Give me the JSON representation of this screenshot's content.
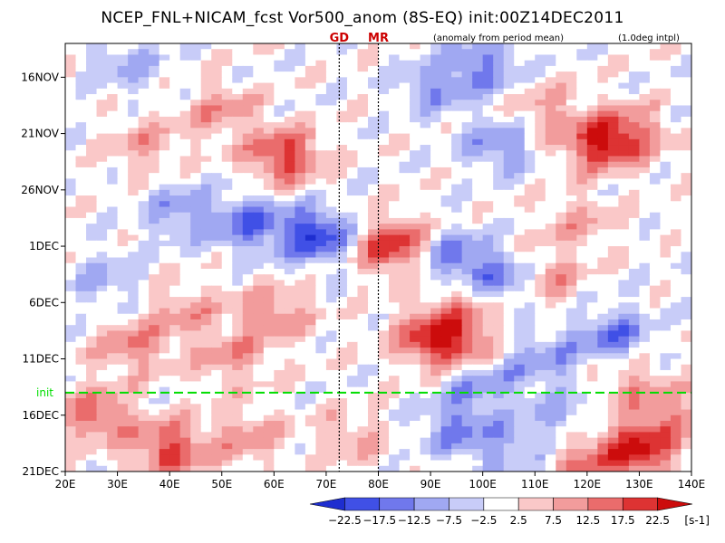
{
  "title": "NCEP_FNL+NICAM_fcst Vor500_anom (8S-EQ) init:00Z14DEC2011",
  "note_left": "(anomaly from period mean)",
  "note_right": "(1.0deg intpl)",
  "chart_data": {
    "type": "heatmap",
    "title": "NCEP_FNL+NICAM_fcst Vor500_anom (8S-EQ) init:00Z14DEC2011",
    "x_ticks": [
      "20E",
      "30E",
      "40E",
      "50E",
      "60E",
      "70E",
      "80E",
      "90E",
      "100E",
      "110E",
      "120E",
      "130E",
      "140E"
    ],
    "x_tick_values": [
      20,
      30,
      40,
      50,
      60,
      70,
      80,
      90,
      100,
      110,
      120,
      130,
      140
    ],
    "xlim": [
      20,
      140
    ],
    "y_ticks": [
      "16NOV",
      "21NOV",
      "26NOV",
      "1DEC",
      "6DEC",
      "11DEC",
      "16DEC",
      "21DEC"
    ],
    "y_tick_values": [
      3,
      8,
      13,
      18,
      23,
      28,
      33,
      38
    ],
    "ylim": [
      0,
      38
    ],
    "y_axis_direction": "time increases downward",
    "init_line": {
      "label": "init",
      "day": 31,
      "color": "#00dd00"
    },
    "markers": [
      {
        "label": "GD",
        "lon": 72.5,
        "color": "#cc0000"
      },
      {
        "label": "MR",
        "lon": 80,
        "color": "#cc0000"
      }
    ],
    "colorbar": {
      "labels": [
        "−22.5",
        "−17.5",
        "−12.5",
        "−7.5",
        "−2.5",
        "2.5",
        "7.5",
        "12.5",
        "17.5",
        "22.5"
      ],
      "unit": "[s-1]",
      "colors": [
        "#1e2ed0",
        "#4050e6",
        "#7078ec",
        "#a0a8f2",
        "#c8ccf8",
        "#ffffff",
        "#fac8c8",
        "#f29c9c",
        "#ea6c6c",
        "#dd3333",
        "#cc0c0c"
      ]
    },
    "features": [
      {
        "lon": 32,
        "day": 2,
        "value": -8
      },
      {
        "lon": 62,
        "day": 10,
        "value": 20
      },
      {
        "lon": 50,
        "day": 6,
        "value": 10
      },
      {
        "lon": 35,
        "day": 9,
        "value": 9
      },
      {
        "lon": 68,
        "day": 17,
        "value": -22
      },
      {
        "lon": 55,
        "day": 16,
        "value": -15
      },
      {
        "lon": 42,
        "day": 15,
        "value": -11
      },
      {
        "lon": 90,
        "day": 4,
        "value": -10
      },
      {
        "lon": 100,
        "day": 2,
        "value": -14
      },
      {
        "lon": 103,
        "day": 9,
        "value": -12
      },
      {
        "lon": 122,
        "day": 9,
        "value": 18
      },
      {
        "lon": 128,
        "day": 8,
        "value": 14
      },
      {
        "lon": 112,
        "day": 6,
        "value": 9
      },
      {
        "lon": 83,
        "day": 18,
        "value": 22
      },
      {
        "lon": 94,
        "day": 19,
        "value": -15
      },
      {
        "lon": 104,
        "day": 21,
        "value": -17
      },
      {
        "lon": 97,
        "day": 23,
        "value": 10
      },
      {
        "lon": 112,
        "day": 21,
        "value": 12
      },
      {
        "lon": 118,
        "day": 16,
        "value": 8
      },
      {
        "lon": 60,
        "day": 24,
        "value": 12
      },
      {
        "lon": 43,
        "day": 24,
        "value": 9
      },
      {
        "lon": 28,
        "day": 21,
        "value": -8
      },
      {
        "lon": 90,
        "day": 26,
        "value": 18
      },
      {
        "lon": 96,
        "day": 27,
        "value": 14
      },
      {
        "lon": 125,
        "day": 26,
        "value": -15
      },
      {
        "lon": 112,
        "day": 28,
        "value": -10
      },
      {
        "lon": 100,
        "day": 30,
        "value": -12
      },
      {
        "lon": 52,
        "day": 28,
        "value": 10
      },
      {
        "lon": 33,
        "day": 27,
        "value": 12
      },
      {
        "lon": 128,
        "day": 30,
        "value": 9
      },
      {
        "lon": 26,
        "day": 33,
        "value": 15
      },
      {
        "lon": 40,
        "day": 36,
        "value": 19
      },
      {
        "lon": 55,
        "day": 35,
        "value": 10
      },
      {
        "lon": 95,
        "day": 34,
        "value": -13
      },
      {
        "lon": 105,
        "day": 36,
        "value": -9
      },
      {
        "lon": 115,
        "day": 33,
        "value": -8
      },
      {
        "lon": 120,
        "day": 37,
        "value": 12
      },
      {
        "lon": 130,
        "day": 36,
        "value": 22
      },
      {
        "lon": 136,
        "day": 33,
        "value": 10
      },
      {
        "lon": 75,
        "day": 35,
        "value": 8
      }
    ]
  }
}
